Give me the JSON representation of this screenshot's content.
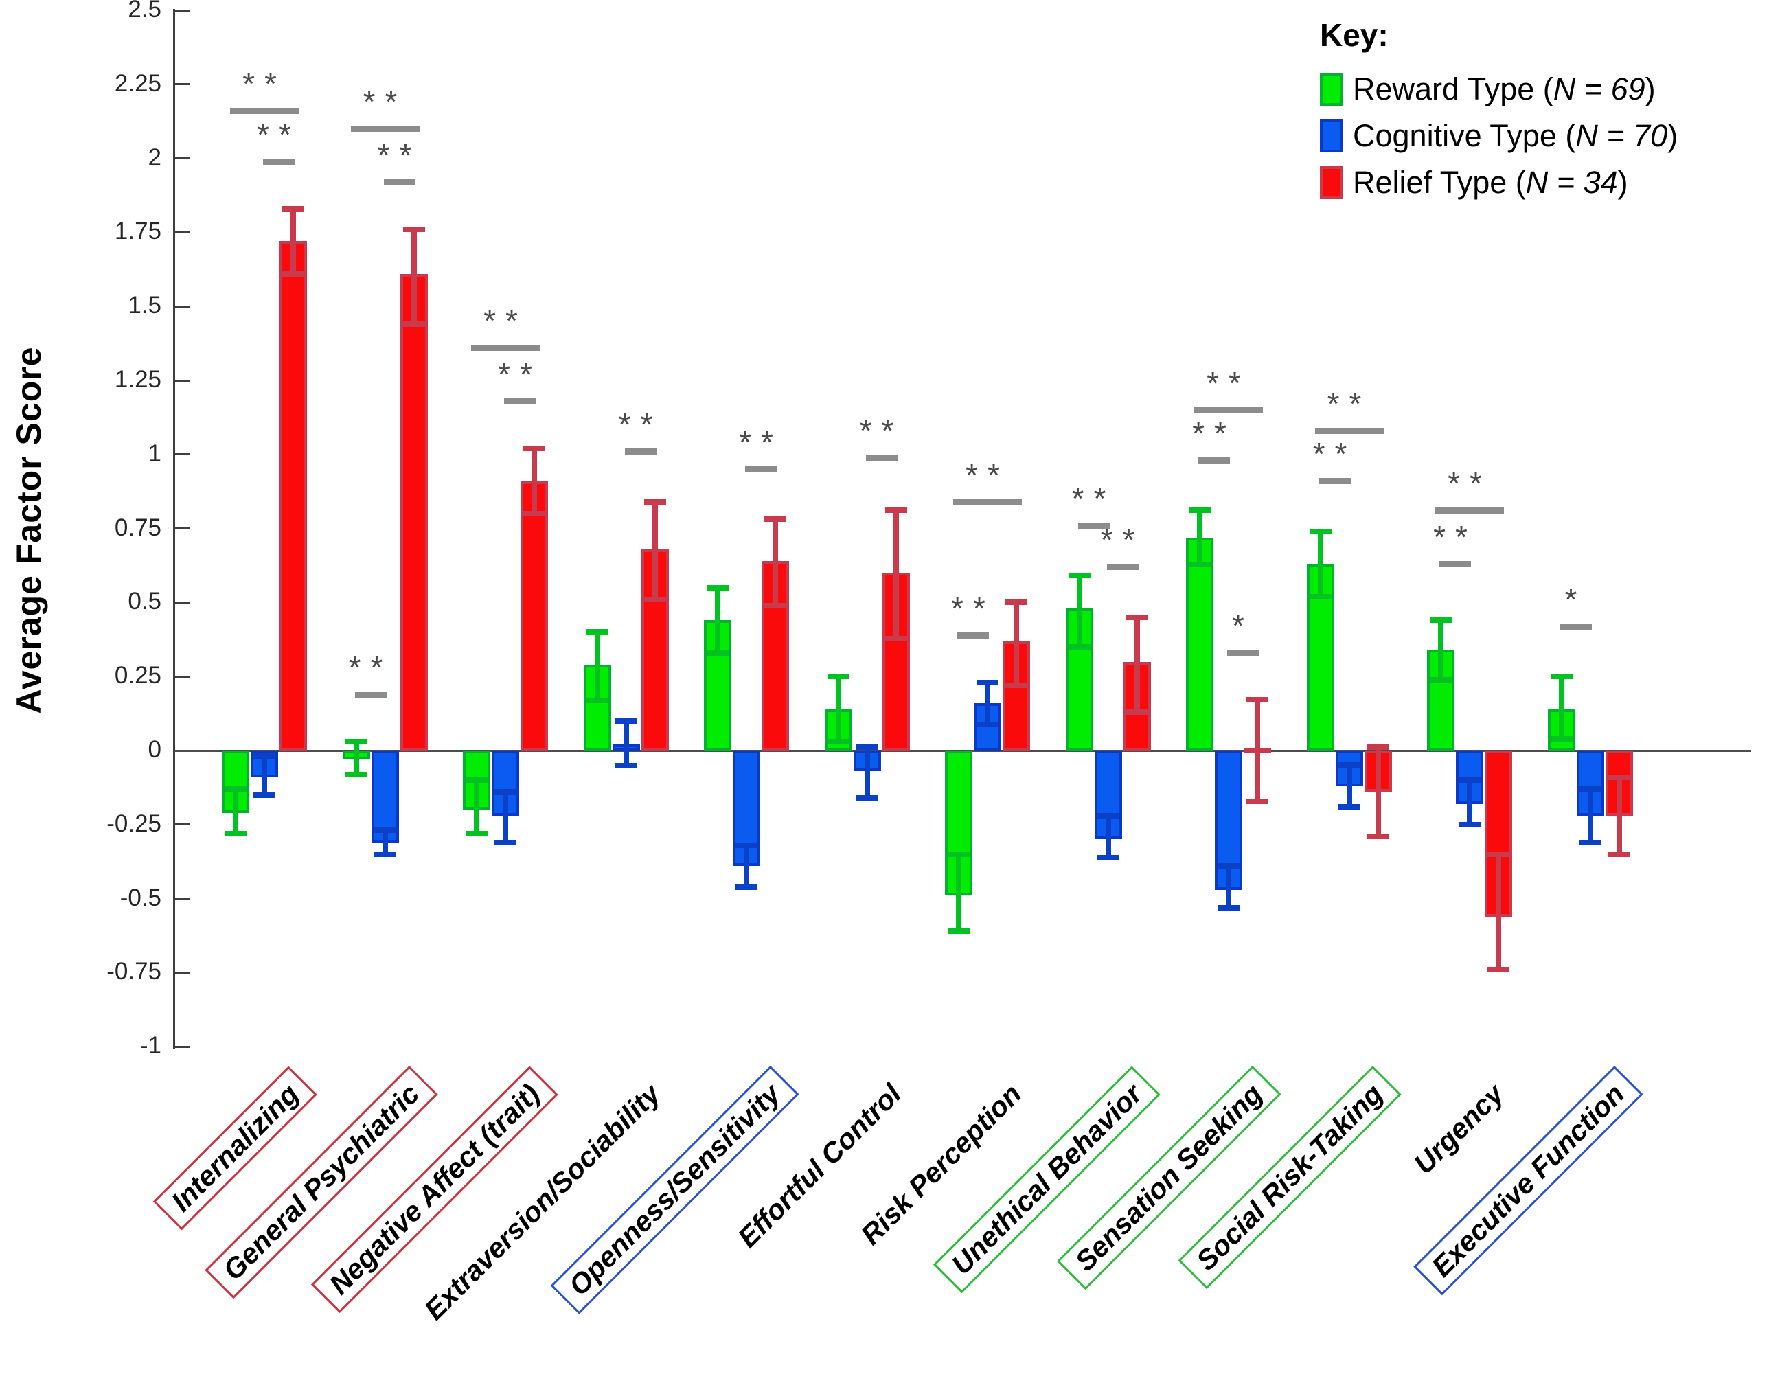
{
  "chart_data": {
    "type": "bar",
    "title": "",
    "ylabel": "Average Factor Score",
    "xlabel": "",
    "ylim": [
      -1,
      2.5
    ],
    "grid": false,
    "legend_position": "top-right",
    "legend_title": "Key:",
    "ytick_labels": [
      "2.5",
      "2.25",
      "2",
      "1.75",
      "1.5",
      "1.25",
      "1",
      "0.75",
      "0.5",
      "0.25",
      "0",
      "-0.25",
      "-0.5",
      "-0.75",
      "-1"
    ],
    "categories": [
      {
        "label": "Internalizing",
        "box": "red"
      },
      {
        "label": "General Psychiatric",
        "box": "red"
      },
      {
        "label": "Negative Affect (trait)",
        "box": "red"
      },
      {
        "label": "Extraversion/Sociability",
        "box": "none"
      },
      {
        "label": "Openness/Sensitivity",
        "box": "blue"
      },
      {
        "label": "Effortful Control",
        "box": "none"
      },
      {
        "label": "Risk Perception",
        "box": "none"
      },
      {
        "label": "Unethical Behavior",
        "box": "green"
      },
      {
        "label": "Sensation Seeking",
        "box": "green"
      },
      {
        "label": "Social Risk-Taking",
        "box": "green"
      },
      {
        "label": "Urgency",
        "box": "none"
      },
      {
        "label": "Executive Function",
        "box": "blue"
      }
    ],
    "box_colors": {
      "red": "#CC3340",
      "blue": "#2A52C8",
      "green": "#2FBA3D",
      "none": "transparent"
    },
    "series": [
      {
        "name": "Reward Type",
        "n_label": "N = 69",
        "fill": "#00EC00",
        "edge": "#00B22D",
        "err_color": "#00C322",
        "values": [
          -0.21,
          -0.03,
          -0.2,
          0.29,
          0.44,
          0.14,
          -0.49,
          0.48,
          0.72,
          0.63,
          0.34,
          0.14
        ],
        "err_lo": [
          -0.29,
          -0.09,
          -0.29,
          0.16,
          0.32,
          0.02,
          -0.62,
          0.34,
          0.62,
          0.51,
          0.23,
          0.03
        ],
        "err_hi": [
          -0.12,
          0.04,
          -0.09,
          0.41,
          0.56,
          0.26,
          -0.34,
          0.6,
          0.82,
          0.75,
          0.45,
          0.26
        ]
      },
      {
        "name": "Cognitive Type",
        "n_label": "N = 70",
        "fill": "#0A5BEF",
        "edge": "#0A38C8",
        "err_color": "#0A41C8",
        "values": [
          -0.09,
          -0.31,
          -0.22,
          0.02,
          -0.39,
          -0.07,
          0.16,
          -0.3,
          -0.47,
          -0.12,
          -0.18,
          -0.22
        ],
        "err_lo": [
          -0.16,
          -0.36,
          -0.32,
          -0.06,
          -0.47,
          -0.17,
          0.08,
          -0.37,
          -0.54,
          -0.2,
          -0.26,
          -0.32
        ],
        "err_hi": [
          -0.01,
          -0.26,
          -0.13,
          0.11,
          -0.31,
          0.02,
          0.24,
          -0.21,
          -0.38,
          -0.04,
          -0.09,
          -0.12
        ]
      },
      {
        "name": "Relief Type",
        "n_label": "N = 34",
        "fill": "#FA0A0A",
        "edge": "#C93A4C",
        "err_color": "#C93A4C",
        "values": [
          1.72,
          1.61,
          0.91,
          0.68,
          0.64,
          0.6,
          0.37,
          0.3,
          0.01,
          -0.14,
          -0.56,
          -0.22
        ],
        "err_lo": [
          1.6,
          1.43,
          0.79,
          0.5,
          0.48,
          0.37,
          0.21,
          0.12,
          -0.18,
          -0.3,
          -0.75,
          -0.36
        ],
        "err_hi": [
          1.84,
          1.77,
          1.03,
          0.85,
          0.79,
          0.82,
          0.51,
          0.46,
          0.18,
          0.02,
          -0.34,
          -0.08
        ]
      }
    ],
    "significance": [
      {
        "group": 0,
        "span": [
          0,
          2
        ],
        "y": 2.17,
        "label": "**"
      },
      {
        "group": 0,
        "span": [
          1,
          2
        ],
        "y": 2.0,
        "label": "**"
      },
      {
        "group": 1,
        "span": [
          0,
          2
        ],
        "y": 2.11,
        "label": "**"
      },
      {
        "group": 1,
        "span": [
          1,
          2
        ],
        "y": 1.93,
        "label": "**"
      },
      {
        "group": 1,
        "span": [
          0,
          1
        ],
        "y": 0.2,
        "label": "**"
      },
      {
        "group": 2,
        "span": [
          0,
          2
        ],
        "y": 1.37,
        "label": "**"
      },
      {
        "group": 2,
        "span": [
          1,
          2
        ],
        "y": 1.19,
        "label": "**"
      },
      {
        "group": 3,
        "span": [
          1,
          2
        ],
        "y": 1.02,
        "label": "**"
      },
      {
        "group": 4,
        "span": [
          1,
          2
        ],
        "y": 0.96,
        "label": "**"
      },
      {
        "group": 5,
        "span": [
          1,
          2
        ],
        "y": 1.0,
        "label": "**"
      },
      {
        "group": 6,
        "span": [
          0,
          2
        ],
        "y": 0.85,
        "label": "**"
      },
      {
        "group": 6,
        "span": [
          0,
          1
        ],
        "y": 0.4,
        "label": "**"
      },
      {
        "group": 7,
        "span": [
          0,
          1
        ],
        "y": 0.77,
        "label": "**"
      },
      {
        "group": 7,
        "span": [
          1,
          2
        ],
        "y": 0.63,
        "label": "**"
      },
      {
        "group": 8,
        "span": [
          0,
          2
        ],
        "y": 1.16,
        "label": "**"
      },
      {
        "group": 8,
        "span": [
          0,
          1
        ],
        "y": 0.99,
        "label": "**"
      },
      {
        "group": 8,
        "span": [
          1,
          2
        ],
        "y": 0.34,
        "label": "*"
      },
      {
        "group": 9,
        "span": [
          0,
          2
        ],
        "y": 1.09,
        "label": "**"
      },
      {
        "group": 9,
        "span": [
          0,
          1
        ],
        "y": 0.92,
        "label": "**"
      },
      {
        "group": 10,
        "span": [
          0,
          2
        ],
        "y": 0.82,
        "label": "**"
      },
      {
        "group": 10,
        "span": [
          0,
          1
        ],
        "y": 0.64,
        "label": "**"
      },
      {
        "group": 11,
        "span": [
          0,
          1
        ],
        "y": 0.43,
        "label": "*"
      }
    ]
  }
}
